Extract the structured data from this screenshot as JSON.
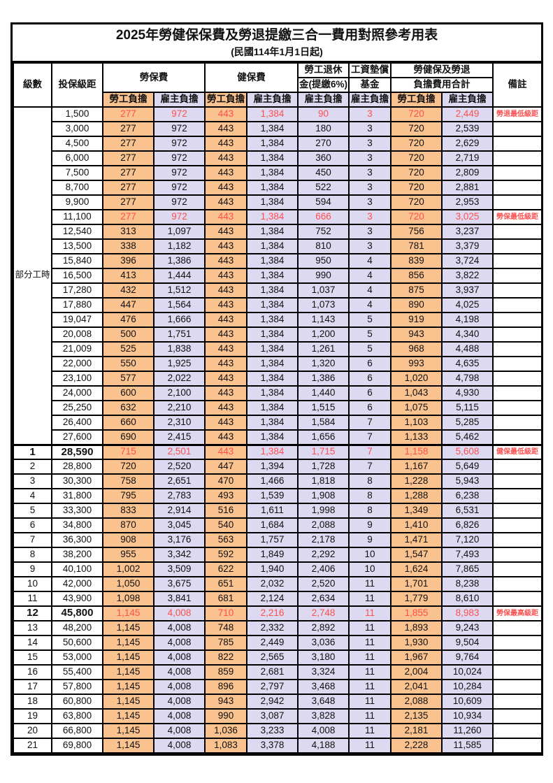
{
  "title": "2025年勞健保保費及勞退提繳三合一費用對照參考用表",
  "subtitle": "(民國114年1月1日起)",
  "colors": {
    "employee_bg": "#FAC28E",
    "employer_bg": "#DCD9F0",
    "highlight_text": "#FF5050",
    "border": "#000000"
  },
  "columns": {
    "level": "級數",
    "bracket": "投保級距",
    "labor_insurance": "勞保費",
    "health_insurance": "健保費",
    "pension_line1": "勞工退休",
    "pension_line2": "金(提繳6%)",
    "wage_fund_line1": "工資墊償",
    "wage_fund_line2": "基金",
    "total_line1": "勞健保及勞退",
    "total_line2": "負擔費用合計",
    "remark": "備註"
  },
  "subheaders": [
    {
      "label": "勞工負擔",
      "type": "employee"
    },
    {
      "label": "雇主負擔",
      "type": "employer"
    },
    {
      "label": "勞工負擔",
      "type": "employee"
    },
    {
      "label": "雇主負擔",
      "type": "employer"
    },
    {
      "label": "雇主負擔",
      "type": "employer"
    },
    {
      "label": "雇主負擔",
      "type": "employer"
    },
    {
      "label": "勞工負擔",
      "type": "employee"
    },
    {
      "label": "雇主負擔",
      "type": "employer"
    }
  ],
  "part_time_label": "部分工時",
  "part_time_rowspan": 23,
  "rows": [
    {
      "level": "",
      "bracket": "1,500",
      "values": [
        "277",
        "972",
        "443",
        "1,384",
        "90",
        "3",
        "720",
        "2,449"
      ],
      "remark": "勞退最低級距",
      "red": true
    },
    {
      "level": "",
      "bracket": "3,000",
      "values": [
        "277",
        "972",
        "443",
        "1,384",
        "180",
        "3",
        "720",
        "2,539"
      ],
      "remark": ""
    },
    {
      "level": "",
      "bracket": "4,500",
      "values": [
        "277",
        "972",
        "443",
        "1,384",
        "270",
        "3",
        "720",
        "2,629"
      ],
      "remark": ""
    },
    {
      "level": "",
      "bracket": "6,000",
      "values": [
        "277",
        "972",
        "443",
        "1,384",
        "360",
        "3",
        "720",
        "2,719"
      ],
      "remark": ""
    },
    {
      "level": "",
      "bracket": "7,500",
      "values": [
        "277",
        "972",
        "443",
        "1,384",
        "450",
        "3",
        "720",
        "2,809"
      ],
      "remark": ""
    },
    {
      "level": "",
      "bracket": "8,700",
      "values": [
        "277",
        "972",
        "443",
        "1,384",
        "522",
        "3",
        "720",
        "2,881"
      ],
      "remark": ""
    },
    {
      "level": "",
      "bracket": "9,900",
      "values": [
        "277",
        "972",
        "443",
        "1,384",
        "594",
        "3",
        "720",
        "2,953"
      ],
      "remark": ""
    },
    {
      "level": "",
      "bracket": "11,100",
      "values": [
        "277",
        "972",
        "443",
        "1,384",
        "666",
        "3",
        "720",
        "3,025"
      ],
      "remark": "勞保最低級距",
      "red": true
    },
    {
      "level": "",
      "bracket": "12,540",
      "values": [
        "313",
        "1,097",
        "443",
        "1,384",
        "752",
        "3",
        "756",
        "3,237"
      ],
      "remark": ""
    },
    {
      "level": "",
      "bracket": "13,500",
      "values": [
        "338",
        "1,182",
        "443",
        "1,384",
        "810",
        "3",
        "781",
        "3,379"
      ],
      "remark": ""
    },
    {
      "level": "",
      "bracket": "15,840",
      "values": [
        "396",
        "1,386",
        "443",
        "1,384",
        "950",
        "4",
        "839",
        "3,724"
      ],
      "remark": ""
    },
    {
      "level": "",
      "bracket": "16,500",
      "values": [
        "413",
        "1,444",
        "443",
        "1,384",
        "990",
        "4",
        "856",
        "3,822"
      ],
      "remark": ""
    },
    {
      "level": "",
      "bracket": "17,280",
      "values": [
        "432",
        "1,512",
        "443",
        "1,384",
        "1,037",
        "4",
        "875",
        "3,937"
      ],
      "remark": ""
    },
    {
      "level": "",
      "bracket": "17,880",
      "values": [
        "447",
        "1,564",
        "443",
        "1,384",
        "1,073",
        "4",
        "890",
        "4,025"
      ],
      "remark": ""
    },
    {
      "level": "",
      "bracket": "19,047",
      "values": [
        "476",
        "1,666",
        "443",
        "1,384",
        "1,143",
        "5",
        "919",
        "4,198"
      ],
      "remark": ""
    },
    {
      "level": "",
      "bracket": "20,008",
      "values": [
        "500",
        "1,751",
        "443",
        "1,384",
        "1,200",
        "5",
        "943",
        "4,340"
      ],
      "remark": ""
    },
    {
      "level": "",
      "bracket": "21,009",
      "values": [
        "525",
        "1,838",
        "443",
        "1,384",
        "1,261",
        "5",
        "968",
        "4,488"
      ],
      "remark": ""
    },
    {
      "level": "",
      "bracket": "22,000",
      "values": [
        "550",
        "1,925",
        "443",
        "1,384",
        "1,320",
        "6",
        "993",
        "4,635"
      ],
      "remark": ""
    },
    {
      "level": "",
      "bracket": "23,100",
      "values": [
        "577",
        "2,022",
        "443",
        "1,384",
        "1,386",
        "6",
        "1,020",
        "4,798"
      ],
      "remark": ""
    },
    {
      "level": "",
      "bracket": "24,000",
      "values": [
        "600",
        "2,100",
        "443",
        "1,384",
        "1,440",
        "6",
        "1,043",
        "4,930"
      ],
      "remark": ""
    },
    {
      "level": "",
      "bracket": "25,250",
      "values": [
        "632",
        "2,210",
        "443",
        "1,384",
        "1,515",
        "6",
        "1,075",
        "5,115"
      ],
      "remark": ""
    },
    {
      "level": "",
      "bracket": "26,400",
      "values": [
        "660",
        "2,310",
        "443",
        "1,384",
        "1,584",
        "7",
        "1,103",
        "5,285"
      ],
      "remark": ""
    },
    {
      "level": "",
      "bracket": "27,600",
      "values": [
        "690",
        "2,415",
        "443",
        "1,384",
        "1,656",
        "7",
        "1,133",
        "5,462"
      ],
      "remark": ""
    },
    {
      "level": "1",
      "bracket": "28,590",
      "values": [
        "715",
        "2,501",
        "443",
        "1,384",
        "1,715",
        "7",
        "1,158",
        "5,608"
      ],
      "remark": "健保最低級距",
      "red": true,
      "bold": true,
      "thick_top": true
    },
    {
      "level": "2",
      "bracket": "28,800",
      "values": [
        "720",
        "2,520",
        "447",
        "1,394",
        "1,728",
        "7",
        "1,167",
        "5,649"
      ],
      "remark": ""
    },
    {
      "level": "3",
      "bracket": "30,300",
      "values": [
        "758",
        "2,651",
        "470",
        "1,466",
        "1,818",
        "8",
        "1,228",
        "5,943"
      ],
      "remark": ""
    },
    {
      "level": "4",
      "bracket": "31,800",
      "values": [
        "795",
        "2,783",
        "493",
        "1,539",
        "1,908",
        "8",
        "1,288",
        "6,238"
      ],
      "remark": ""
    },
    {
      "level": "5",
      "bracket": "33,300",
      "values": [
        "833",
        "2,914",
        "516",
        "1,611",
        "1,998",
        "8",
        "1,349",
        "6,531"
      ],
      "remark": ""
    },
    {
      "level": "6",
      "bracket": "34,800",
      "values": [
        "870",
        "3,045",
        "540",
        "1,684",
        "2,088",
        "9",
        "1,410",
        "6,826"
      ],
      "remark": ""
    },
    {
      "level": "7",
      "bracket": "36,300",
      "values": [
        "908",
        "3,176",
        "563",
        "1,757",
        "2,178",
        "9",
        "1,471",
        "7,120"
      ],
      "remark": ""
    },
    {
      "level": "8",
      "bracket": "38,200",
      "values": [
        "955",
        "3,342",
        "592",
        "1,849",
        "2,292",
        "10",
        "1,547",
        "7,493"
      ],
      "remark": ""
    },
    {
      "level": "9",
      "bracket": "40,100",
      "values": [
        "1,002",
        "3,509",
        "622",
        "1,940",
        "2,406",
        "10",
        "1,624",
        "7,865"
      ],
      "remark": ""
    },
    {
      "level": "10",
      "bracket": "42,000",
      "values": [
        "1,050",
        "3,675",
        "651",
        "2,032",
        "2,520",
        "11",
        "1,701",
        "8,238"
      ],
      "remark": ""
    },
    {
      "level": "11",
      "bracket": "43,900",
      "values": [
        "1,098",
        "3,841",
        "681",
        "2,124",
        "2,634",
        "11",
        "1,779",
        "8,610"
      ],
      "remark": ""
    },
    {
      "level": "12",
      "bracket": "45,800",
      "values": [
        "1,145",
        "4,008",
        "710",
        "2,216",
        "2,748",
        "11",
        "1,855",
        "8,983"
      ],
      "remark": "勞保最高級距",
      "red": true,
      "bold": true
    },
    {
      "level": "13",
      "bracket": "48,200",
      "values": [
        "1,145",
        "4,008",
        "748",
        "2,332",
        "2,892",
        "11",
        "1,893",
        "9,243"
      ],
      "remark": ""
    },
    {
      "level": "14",
      "bracket": "50,600",
      "values": [
        "1,145",
        "4,008",
        "785",
        "2,449",
        "3,036",
        "11",
        "1,930",
        "9,504"
      ],
      "remark": ""
    },
    {
      "level": "15",
      "bracket": "53,000",
      "values": [
        "1,145",
        "4,008",
        "822",
        "2,565",
        "3,180",
        "11",
        "1,967",
        "9,764"
      ],
      "remark": ""
    },
    {
      "level": "16",
      "bracket": "55,400",
      "values": [
        "1,145",
        "4,008",
        "859",
        "2,681",
        "3,324",
        "11",
        "2,004",
        "10,024"
      ],
      "remark": ""
    },
    {
      "level": "17",
      "bracket": "57,800",
      "values": [
        "1,145",
        "4,008",
        "896",
        "2,797",
        "3,468",
        "11",
        "2,041",
        "10,284"
      ],
      "remark": ""
    },
    {
      "level": "18",
      "bracket": "60,800",
      "values": [
        "1,145",
        "4,008",
        "943",
        "2,942",
        "3,648",
        "11",
        "2,088",
        "10,609"
      ],
      "remark": ""
    },
    {
      "level": "19",
      "bracket": "63,800",
      "values": [
        "1,145",
        "4,008",
        "990",
        "3,087",
        "3,828",
        "11",
        "2,135",
        "10,934"
      ],
      "remark": ""
    },
    {
      "level": "20",
      "bracket": "66,800",
      "values": [
        "1,145",
        "4,008",
        "1,036",
        "3,233",
        "4,008",
        "11",
        "2,181",
        "11,260"
      ],
      "remark": ""
    },
    {
      "level": "21",
      "bracket": "69,800",
      "values": [
        "1,145",
        "4,008",
        "1,083",
        "3,378",
        "4,188",
        "11",
        "2,228",
        "11,585"
      ],
      "remark": ""
    }
  ]
}
